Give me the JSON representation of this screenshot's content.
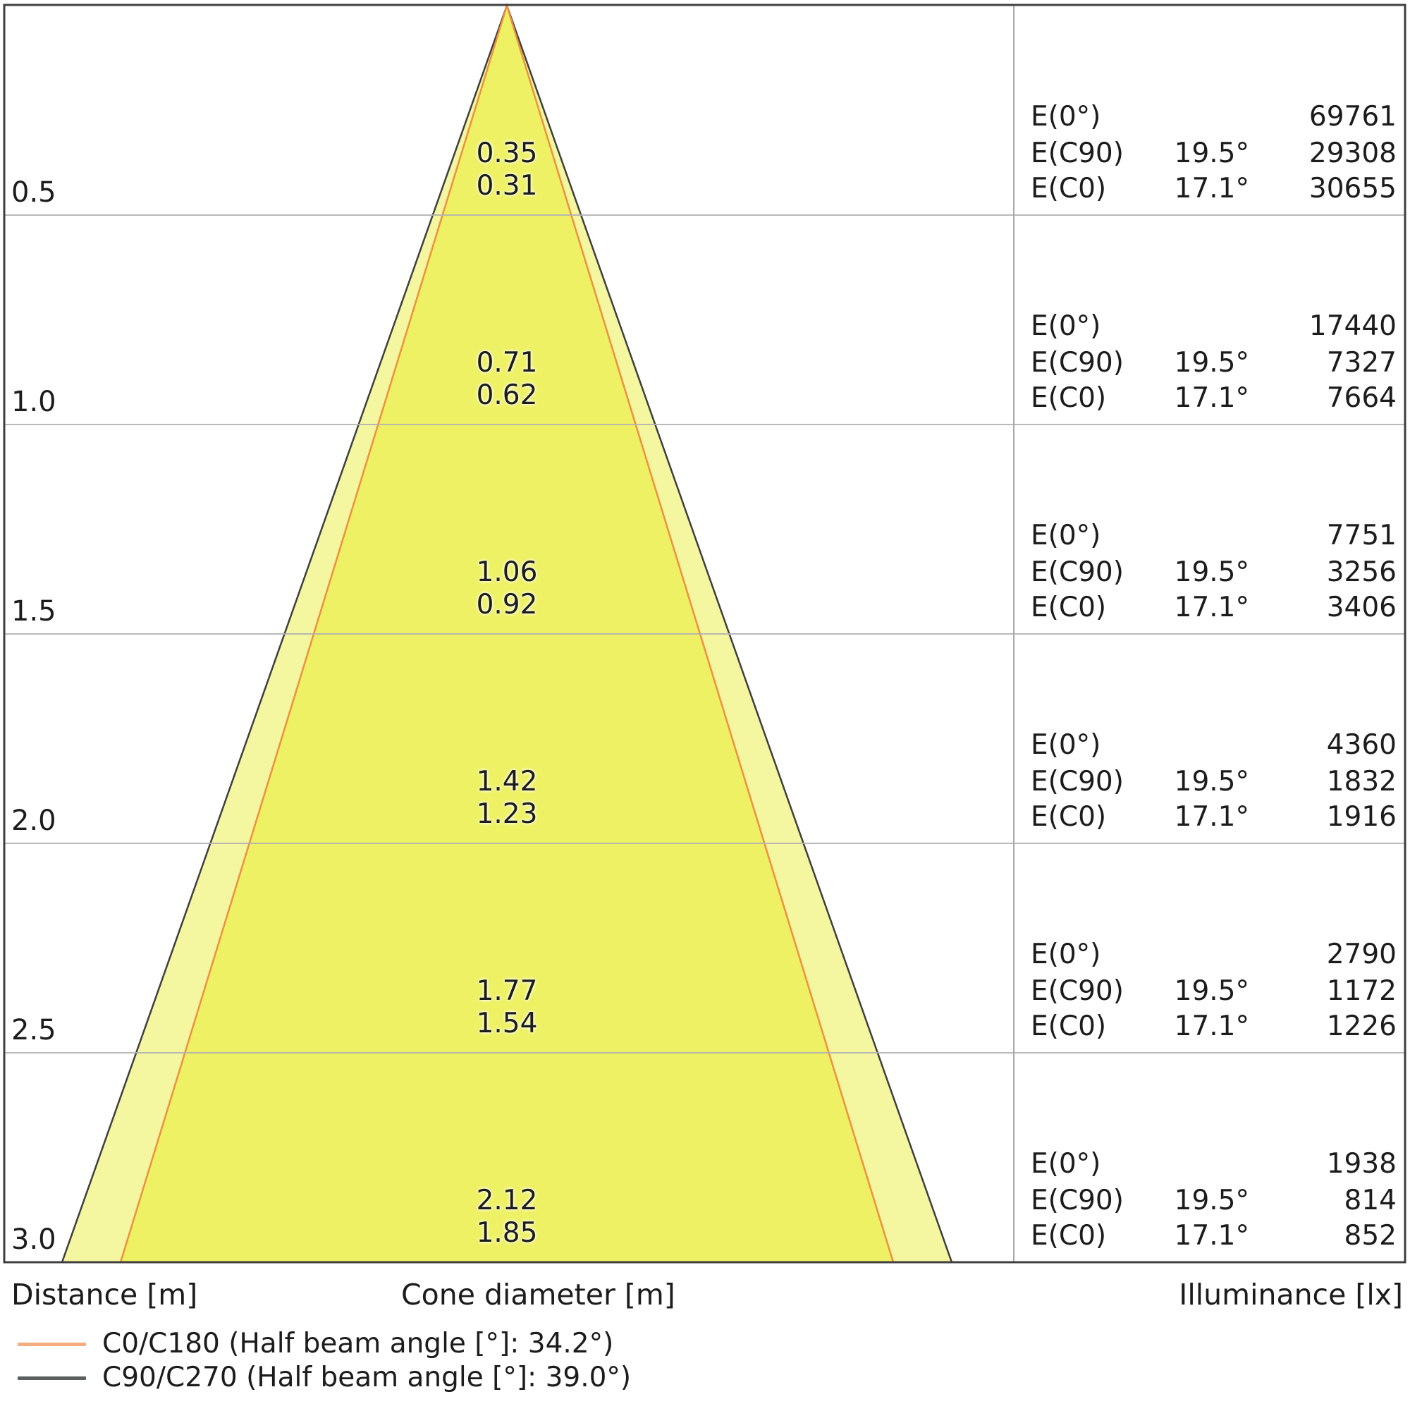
{
  "chart_data": {
    "type": "area",
    "subtype": "light-cone-diagram",
    "title": "",
    "axis_labels": {
      "distance": "Distance [m]",
      "cone_diameter": "Cone diameter [m]",
      "illuminance": "Illuminance [lx]"
    },
    "distances_m": [
      0.5,
      1.0,
      1.5,
      2.0,
      2.5,
      3.0
    ],
    "series": [
      {
        "name": "Cone diameter C90/C270 [m]",
        "values": [
          0.35,
          0.71,
          1.06,
          1.42,
          1.77,
          2.12
        ]
      },
      {
        "name": "Cone diameter C0/C180 [m]",
        "values": [
          0.31,
          0.62,
          0.92,
          1.23,
          1.54,
          1.85
        ]
      },
      {
        "name": "E(0°) [lx]",
        "values": [
          69761,
          17440,
          7751,
          4360,
          2790,
          1938
        ]
      },
      {
        "name": "E(C90) [lx]",
        "values": [
          29308,
          7327,
          3256,
          1832,
          1172,
          814
        ]
      },
      {
        "name": "E(C0) [lx]",
        "values": [
          30655,
          7664,
          3406,
          1916,
          1226,
          852
        ]
      }
    ],
    "rows": [
      {
        "distance": "0.5",
        "cone_c90": "0.35",
        "cone_c0": "0.31",
        "e0_label": "E(0°)",
        "e0": "69761",
        "ec90_label": "E(C90)",
        "ec90_angle": "19.5°",
        "ec90": "29308",
        "ec0_label": "E(C0)",
        "ec0_angle": "17.1°",
        "ec0": "30655"
      },
      {
        "distance": "1.0",
        "cone_c90": "0.71",
        "cone_c0": "0.62",
        "e0_label": "E(0°)",
        "e0": "17440",
        "ec90_label": "E(C90)",
        "ec90_angle": "19.5°",
        "ec90": "7327",
        "ec0_label": "E(C0)",
        "ec0_angle": "17.1°",
        "ec0": "7664"
      },
      {
        "distance": "1.5",
        "cone_c90": "1.06",
        "cone_c0": "0.92",
        "e0_label": "E(0°)",
        "e0": "7751",
        "ec90_label": "E(C90)",
        "ec90_angle": "19.5°",
        "ec90": "3256",
        "ec0_label": "E(C0)",
        "ec0_angle": "17.1°",
        "ec0": "3406"
      },
      {
        "distance": "2.0",
        "cone_c90": "1.42",
        "cone_c0": "1.23",
        "e0_label": "E(0°)",
        "e0": "4360",
        "ec90_label": "E(C90)",
        "ec90_angle": "19.5°",
        "ec90": "1832",
        "ec0_label": "E(C0)",
        "ec0_angle": "17.1°",
        "ec0": "1916"
      },
      {
        "distance": "2.5",
        "cone_c90": "1.77",
        "cone_c0": "1.54",
        "e0_label": "E(0°)",
        "e0": "2790",
        "ec90_label": "E(C90)",
        "ec90_angle": "19.5°",
        "ec90": "1172",
        "ec0_label": "E(C0)",
        "ec0_angle": "17.1°",
        "ec0": "1226"
      },
      {
        "distance": "3.0",
        "cone_c90": "2.12",
        "cone_c0": "1.85",
        "e0_label": "E(0°)",
        "e0": "1938",
        "ec90_label": "E(C90)",
        "ec90_angle": "19.5°",
        "ec90": "814",
        "ec0_label": "E(C0)",
        "ec0_angle": "17.1°",
        "ec0": "852"
      }
    ],
    "legend": [
      {
        "name": "C0/C180",
        "label": "C0/C180 (Half beam angle [°]: 34.2°)",
        "half_beam_angle_deg": 34.2,
        "swatch_color": "#f5ad80"
      },
      {
        "name": "C90/C270",
        "label": "C90/C270 (Half beam angle [°]: 39.0°)",
        "half_beam_angle_deg": 39.0,
        "swatch_color": "#5b5f5f"
      }
    ],
    "geometry": {
      "half_angle_c90_deg": 19.5,
      "half_angle_c0_deg": 17.1,
      "max_distance_m": 3.0
    },
    "colors": {
      "outer_cone_fill": "#f5f6a0",
      "inner_cone_fill": "#eef163",
      "outer_cone_stroke": "#3f3f3f",
      "inner_cone_stroke": "#ee9040",
      "grid": "#b2b2b2",
      "border": "#3f3f3f",
      "divider": "#a8a8a8",
      "text": "#1c1c1c"
    }
  }
}
